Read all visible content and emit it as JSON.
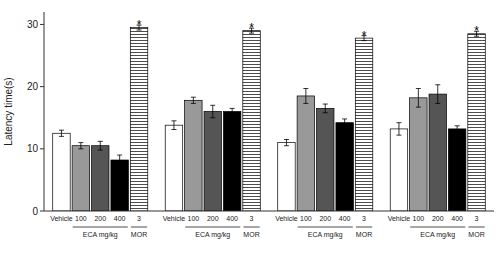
{
  "chart_data": {
    "type": "bar",
    "categories": [
      null,
      null,
      null,
      null
    ],
    "series": [
      {
        "name": "Vehicle",
        "color": "white",
        "values": [
          12.5,
          13.8,
          11.0,
          13.2
        ],
        "errors": [
          0.5,
          0.7,
          0.5,
          1.0
        ]
      },
      {
        "name": "100",
        "color": "#999999",
        "values": [
          10.5,
          17.8,
          18.5,
          18.2
        ],
        "errors": [
          0.5,
          0.5,
          1.2,
          1.5
        ]
      },
      {
        "name": "200",
        "color": "#555555",
        "values": [
          10.5,
          16.0,
          16.5,
          18.8
        ],
        "errors": [
          0.7,
          1.0,
          0.7,
          1.5
        ]
      },
      {
        "name": "400",
        "color": "black",
        "values": [
          8.2,
          16.0,
          14.2,
          13.2
        ],
        "errors": [
          0.8,
          0.5,
          0.6,
          0.5
        ]
      },
      {
        "name": "3",
        "color": "white",
        "values": [
          29.5,
          29.0,
          27.8,
          28.5
        ],
        "errors": [
          0.4,
          0.4,
          0.4,
          0.4
        ]
      }
    ],
    "ylabel": "Latency time(s)",
    "ylim": [
      0,
      32
    ],
    "yticks": [
      0,
      10,
      20,
      30
    ],
    "annotations": [
      {
        "text": "*",
        "series": 4
      }
    ],
    "sub_labels": [
      {
        "text": "ECA mg/kg",
        "series": [
          1,
          2,
          3
        ]
      },
      {
        "text": "MOR",
        "series": [
          4
        ]
      }
    ]
  }
}
